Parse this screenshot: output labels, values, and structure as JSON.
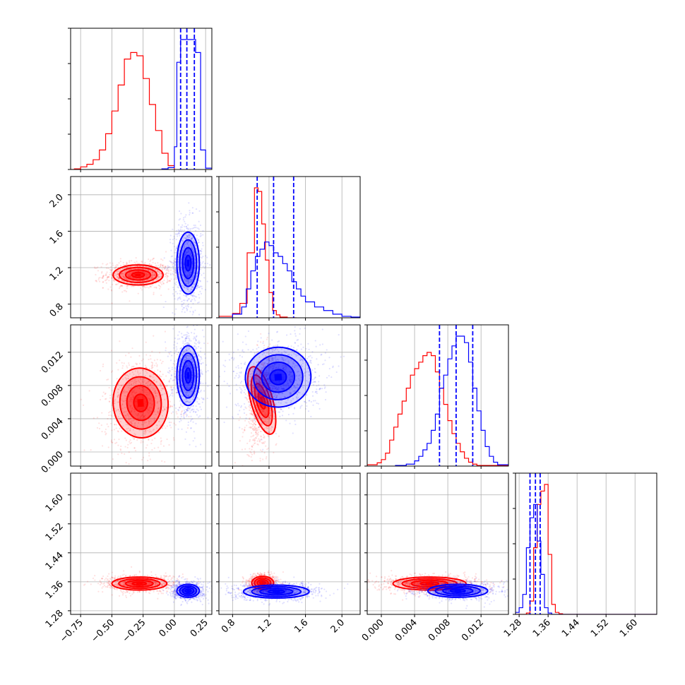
{
  "colors": {
    "red": "#ff0000",
    "blue": "#0000ff",
    "grid": "#b0b0b0",
    "axis": "#000000"
  },
  "chart_data": {
    "type": "corner",
    "grid": true,
    "n_params": 4,
    "series_colors": [
      "red",
      "blue"
    ],
    "params": [
      {
        "lim": [
          -0.83,
          0.3
        ],
        "ticks": [
          -0.75,
          -0.5,
          -0.25,
          0.0,
          0.25
        ],
        "ticklabels": [
          "−0.75",
          "−0.50",
          "−0.25",
          "0.00",
          "0.25"
        ]
      },
      {
        "lim": [
          0.65,
          2.2
        ],
        "ticks": [
          0.8,
          1.2,
          1.6,
          2.0
        ],
        "ticklabels": [
          "0.8",
          "1.2",
          "1.6",
          "2.0"
        ]
      },
      {
        "lim": [
          -0.0017,
          0.0153
        ],
        "ticks": [
          0.0,
          0.004,
          0.008,
          0.012
        ],
        "ticklabels": [
          "0.000",
          "0.004",
          "0.008",
          "0.012"
        ]
      },
      {
        "lim": [
          1.27,
          1.66
        ],
        "ticks": [
          1.28,
          1.36,
          1.44,
          1.52,
          1.6
        ],
        "ticklabels": [
          "1.28",
          "1.36",
          "1.44",
          "1.52",
          "1.60"
        ]
      }
    ],
    "histograms": [
      {
        "param": 0,
        "quantiles_blue": [
          0.05,
          0.1,
          0.16
        ],
        "series": [
          {
            "color": "red",
            "edges": [
              -0.83,
              -0.8,
              -0.75,
              -0.7,
              -0.65,
              -0.6,
              -0.55,
              -0.5,
              -0.45,
              -0.4,
              -0.35,
              -0.3,
              -0.25,
              -0.2,
              -0.15,
              -0.1,
              -0.05,
              0.0
            ],
            "counts": [
              0,
              1,
              4,
              8,
              15,
              30,
              55,
              90,
              130,
              170,
              180,
              175,
              140,
              100,
              60,
              25,
              6
            ]
          },
          {
            "color": "blue",
            "edges": [
              -0.1,
              -0.05,
              0.0,
              0.02,
              0.05,
              0.09,
              0.13,
              0.17,
              0.21,
              0.25,
              0.3
            ],
            "counts": [
              1,
              3,
              35,
              165,
              200,
              200,
              200,
              180,
              30,
              2
            ]
          }
        ]
      },
      {
        "param": 1,
        "quantiles_blue": [
          1.07,
          1.25,
          1.47
        ],
        "series": [
          {
            "color": "red",
            "edges": [
              0.65,
              0.8,
              0.88,
              0.96,
              1.04,
              1.08,
              1.12,
              1.16,
              1.2,
              1.24,
              1.28,
              1.32,
              1.4,
              1.5
            ],
            "counts": [
              2,
              6,
              20,
              90,
              180,
              175,
              130,
              80,
              35,
              10,
              4,
              1,
              0
            ]
          },
          {
            "color": "blue",
            "edges": [
              0.65,
              0.8,
              0.9,
              0.95,
              1.0,
              1.05,
              1.1,
              1.15,
              1.2,
              1.25,
              1.3,
              1.35,
              1.4,
              1.45,
              1.5,
              1.55,
              1.6,
              1.7,
              1.8,
              1.9,
              2.0,
              2.1,
              2.2
            ],
            "counts": [
              0,
              5,
              15,
              40,
              65,
              85,
              95,
              105,
              100,
              90,
              85,
              75,
              65,
              50,
              40,
              30,
              22,
              15,
              10,
              5,
              2,
              1
            ]
          }
        ]
      },
      {
        "param": 2,
        "quantiles_blue": [
          0.007,
          0.009,
          0.011
        ],
        "series": [
          {
            "color": "red",
            "edges": [
              -0.0017,
              -0.0005,
              0.0,
              0.0005,
              0.001,
              0.0015,
              0.002,
              0.0025,
              0.003,
              0.0035,
              0.004,
              0.0045,
              0.005,
              0.0055,
              0.006,
              0.0065,
              0.007,
              0.0075,
              0.008,
              0.0085,
              0.009,
              0.0095,
              0.01,
              0.0105,
              0.011,
              0.0115,
              0.0153
            ],
            "counts": [
              2,
              5,
              10,
              20,
              40,
              60,
              80,
              100,
              120,
              140,
              150,
              160,
              170,
              175,
              170,
              145,
              120,
              95,
              70,
              50,
              35,
              22,
              12,
              6,
              3,
              1
            ]
          },
          {
            "color": "blue",
            "edges": [
              0.0017,
              0.003,
              0.004,
              0.0045,
              0.005,
              0.0055,
              0.006,
              0.0065,
              0.007,
              0.0075,
              0.008,
              0.0085,
              0.009,
              0.0095,
              0.01,
              0.0105,
              0.011,
              0.0115,
              0.012,
              0.0125,
              0.013,
              0.0135,
              0.014,
              0.0153
            ],
            "counts": [
              1,
              3,
              8,
              15,
              25,
              35,
              55,
              80,
              120,
              140,
              165,
              185,
              200,
              200,
              190,
              160,
              120,
              85,
              55,
              30,
              15,
              6,
              2
            ]
          }
        ]
      },
      {
        "param": 3,
        "quantiles_blue": [
          1.31,
          1.325,
          1.338
        ],
        "series": [
          {
            "color": "red",
            "edges": [
              1.27,
              1.3,
              1.31,
              1.32,
              1.33,
              1.34,
              1.35,
              1.36,
              1.37,
              1.38,
              1.39,
              1.4,
              1.66
            ],
            "counts": [
              0,
              2,
              20,
              100,
              165,
              185,
              195,
              90,
              15,
              3,
              1,
              0
            ]
          },
          {
            "color": "blue",
            "edges": [
              1.27,
              1.28,
              1.29,
              1.3,
              1.31,
              1.32,
              1.33,
              1.34,
              1.35,
              1.36,
              1.37,
              1.66
            ],
            "counts": [
              3,
              10,
              30,
              100,
              145,
              165,
              110,
              60,
              10,
              2,
              0
            ]
          }
        ]
      }
    ],
    "panels_2d": [
      {
        "x": 0,
        "y": 1,
        "series": [
          {
            "color": "red",
            "center": [
              -0.29,
              1.12
            ],
            "sigma": [
              0.1,
              0.055
            ],
            "rho": 0.0
          },
          {
            "color": "blue",
            "center": [
              0.11,
              1.25
            ],
            "sigma": [
              0.045,
              0.17
            ],
            "rho": 0.0
          }
        ]
      },
      {
        "x": 0,
        "y": 2,
        "series": [
          {
            "color": "red",
            "center": [
              -0.27,
              0.0059
            ],
            "sigma": [
              0.11,
              0.0021
            ],
            "rho": 0.1
          },
          {
            "color": "blue",
            "center": [
              0.11,
              0.0092
            ],
            "sigma": [
              0.045,
              0.0018
            ],
            "rho": 0.0
          }
        ]
      },
      {
        "x": 1,
        "y": 2,
        "series": [
          {
            "color": "red",
            "center": [
              1.12,
              0.0062
            ],
            "sigma": [
              0.06,
              0.0021
            ],
            "rho": 0.35
          },
          {
            "color": "blue",
            "center": [
              1.3,
              0.009
            ],
            "sigma": [
              0.18,
              0.0018
            ],
            "rho": 0.1
          }
        ]
      },
      {
        "x": 0,
        "y": 3,
        "series": [
          {
            "color": "red",
            "center": [
              -0.28,
              1.355
            ],
            "sigma": [
              0.11,
              0.009
            ],
            "rho": 0.0
          },
          {
            "color": "blue",
            "center": [
              0.11,
              1.335
            ],
            "sigma": [
              0.045,
              0.009
            ],
            "rho": 0.0
          }
        ]
      },
      {
        "x": 1,
        "y": 3,
        "series": [
          {
            "color": "red",
            "center": [
              1.13,
              1.357
            ],
            "sigma": [
              0.06,
              0.009
            ],
            "rho": 0.0
          },
          {
            "color": "blue",
            "center": [
              1.28,
              1.333
            ],
            "sigma": [
              0.18,
              0.009
            ],
            "rho": 0.0
          }
        ]
      },
      {
        "x": 2,
        "y": 3,
        "series": [
          {
            "color": "red",
            "center": [
              0.0058,
              1.355
            ],
            "sigma": [
              0.0022,
              0.009
            ],
            "rho": 0.0
          },
          {
            "color": "blue",
            "center": [
              0.0092,
              1.335
            ],
            "sigma": [
              0.0018,
              0.009
            ],
            "rho": 0.0
          }
        ]
      }
    ]
  }
}
